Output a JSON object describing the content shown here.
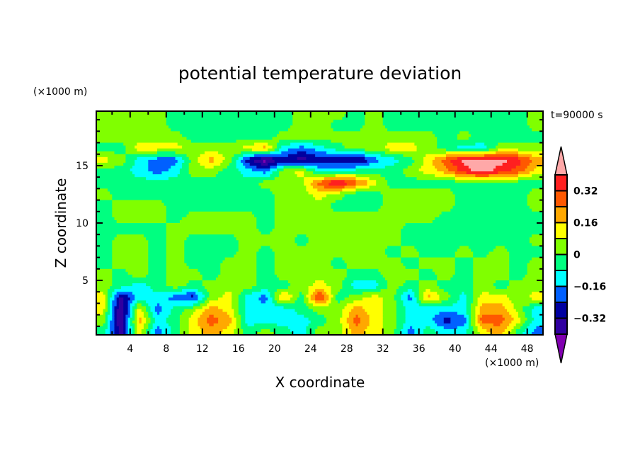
{
  "chart_data": {
    "type": "heatmap",
    "title": "potential temperature deviation",
    "xlabel": "X coordinate",
    "ylabel": "Z coordinate",
    "x_unit": "(×1000 m)",
    "y_unit": "(×1000 m)",
    "annotation": "t=90000 s",
    "xlim": [
      0.25,
      49.75
    ],
    "ylim": [
      0.25,
      19.75
    ],
    "x_ticks": [
      4,
      8,
      12,
      16,
      20,
      24,
      28,
      32,
      36,
      40,
      44,
      48
    ],
    "x_tick_labels": [
      "4",
      "8",
      "12",
      "16",
      "20",
      "24",
      "28",
      "32",
      "36",
      "40",
      "44",
      "48"
    ],
    "y_ticks": [
      5,
      10,
      15
    ],
    "y_tick_labels": [
      "5",
      "10",
      "15"
    ],
    "levels": [
      -0.4,
      -0.32,
      -0.24,
      -0.16,
      -0.08,
      0,
      0.08,
      0.16,
      0.24,
      0.32,
      0.4
    ],
    "colors": [
      "#8000b0",
      "#3000a0",
      "#0000a0",
      "#0060ff",
      "#00ffff",
      "#00ff80",
      "#80ff00",
      "#ffff00",
      "#ffa800",
      "#ff5800",
      "#ff2020",
      "#ffa8a8"
    ],
    "colorbar": {
      "labels": [
        {
          "value": 0.32,
          "text": "0.32"
        },
        {
          "value": 0.16,
          "text": "0.16"
        },
        {
          "value": 0,
          "text": "0"
        },
        {
          "value": -0.16,
          "text": "−0.16"
        },
        {
          "value": -0.32,
          "text": "−0.32"
        }
      ],
      "extend": "both"
    },
    "x": [
      1,
      3,
      5,
      7,
      9,
      11,
      13,
      15,
      17,
      19,
      21,
      23,
      25,
      27,
      29,
      31,
      33,
      35,
      37,
      39,
      41,
      43,
      45,
      47,
      49
    ],
    "z": [
      19.5,
      18.5,
      17.5,
      16.5,
      15.5,
      14.5,
      13.5,
      12.5,
      11.5,
      10.5,
      9.5,
      8.5,
      7.5,
      6.5,
      5.5,
      4.5,
      3.5,
      2.5,
      1.5,
      0.5
    ],
    "values": [
      [
        0.04,
        0.04,
        0.04,
        0.04,
        -0.04,
        -0.04,
        -0.04,
        -0.04,
        -0.04,
        -0.04,
        -0.04,
        0.04,
        0.04,
        0.04,
        -0.04,
        0.04,
        -0.04,
        -0.04,
        -0.04,
        -0.04,
        -0.04,
        -0.04,
        -0.04,
        -0.04,
        0.04
      ],
      [
        0.04,
        0.04,
        0.04,
        0.04,
        -0.04,
        -0.04,
        -0.04,
        -0.04,
        -0.04,
        -0.04,
        -0.04,
        0.04,
        0.04,
        -0.04,
        -0.04,
        0.04,
        -0.04,
        -0.04,
        -0.04,
        -0.04,
        -0.04,
        -0.04,
        -0.04,
        -0.04,
        0.04
      ],
      [
        0.04,
        0.04,
        0.04,
        0.04,
        0.04,
        -0.04,
        -0.04,
        -0.04,
        -0.04,
        -0.04,
        0.04,
        0.04,
        0.04,
        0.04,
        0.04,
        0.04,
        0.04,
        0.04,
        0.04,
        -0.04,
        0.04,
        -0.04,
        -0.04,
        -0.04,
        -0.04
      ],
      [
        -0.04,
        -0.04,
        0.12,
        0.12,
        0.12,
        0.04,
        0.04,
        0.04,
        0.12,
        0.2,
        -0.12,
        -0.2,
        -0.12,
        -0.04,
        0.04,
        0.04,
        0.12,
        0.12,
        0.04,
        -0.04,
        -0.12,
        -0.12,
        0.04,
        0.04,
        0.04
      ],
      [
        0.12,
        0.04,
        -0.12,
        -0.2,
        -0.2,
        0.04,
        0.2,
        0.04,
        -0.28,
        -0.44,
        -0.28,
        -0.36,
        -0.28,
        -0.28,
        -0.36,
        -0.2,
        -0.12,
        -0.04,
        0.12,
        0.28,
        0.44,
        0.44,
        0.44,
        0.36,
        0.2
      ],
      [
        -0.04,
        -0.04,
        -0.12,
        -0.2,
        -0.12,
        0.04,
        0.04,
        -0.04,
        -0.12,
        -0.2,
        0.04,
        0.12,
        -0.12,
        -0.12,
        -0.04,
        -0.04,
        -0.04,
        0.04,
        0.12,
        0.2,
        0.36,
        0.44,
        0.36,
        0.28,
        0.12
      ],
      [
        -0.04,
        -0.04,
        -0.04,
        -0.04,
        -0.04,
        -0.04,
        -0.04,
        -0.04,
        -0.04,
        0.04,
        0.04,
        0.04,
        0.28,
        0.44,
        0.28,
        0.12,
        -0.04,
        -0.04,
        -0.04,
        -0.04,
        -0.04,
        -0.04,
        -0.04,
        -0.04,
        -0.04
      ],
      [
        0.04,
        -0.04,
        -0.04,
        -0.04,
        -0.04,
        -0.04,
        -0.04,
        -0.04,
        -0.04,
        -0.04,
        0.04,
        0.04,
        0.12,
        0.04,
        -0.04,
        -0.04,
        0.04,
        0.04,
        0.04,
        0.04,
        -0.04,
        -0.04,
        -0.04,
        -0.04,
        0.04
      ],
      [
        -0.04,
        0.04,
        0.04,
        0.04,
        -0.04,
        -0.04,
        -0.04,
        -0.04,
        -0.04,
        -0.04,
        0.04,
        0.04,
        0.04,
        -0.04,
        -0.04,
        -0.04,
        0.04,
        0.04,
        0.04,
        0.04,
        -0.04,
        -0.04,
        -0.04,
        -0.04,
        0.04
      ],
      [
        -0.04,
        0.04,
        0.04,
        0.04,
        -0.04,
        0.04,
        0.04,
        0.04,
        0.04,
        -0.04,
        0.04,
        0.04,
        0.04,
        0.04,
        0.04,
        0.04,
        0.04,
        0.04,
        0.04,
        -0.04,
        -0.04,
        -0.04,
        -0.04,
        -0.04,
        -0.04
      ],
      [
        -0.04,
        -0.04,
        -0.04,
        -0.04,
        0.04,
        0.04,
        0.04,
        0.04,
        0.04,
        -0.04,
        0.04,
        0.04,
        0.04,
        0.04,
        0.04,
        0.04,
        0.04,
        -0.04,
        -0.04,
        -0.04,
        -0.04,
        -0.04,
        -0.04,
        -0.04,
        -0.04
      ],
      [
        -0.04,
        0.04,
        0.04,
        -0.04,
        0.04,
        -0.04,
        -0.04,
        -0.04,
        0.04,
        0.04,
        0.04,
        -0.04,
        0.04,
        0.04,
        0.04,
        0.04,
        0.04,
        -0.04,
        -0.04,
        -0.04,
        -0.04,
        -0.04,
        -0.04,
        -0.04,
        0.04
      ],
      [
        -0.04,
        0.04,
        0.04,
        -0.04,
        0.04,
        -0.04,
        -0.04,
        -0.04,
        0.04,
        -0.04,
        0.04,
        0.04,
        0.04,
        0.04,
        0.04,
        0.04,
        -0.04,
        0.04,
        -0.04,
        -0.04,
        0.04,
        -0.04,
        0.04,
        -0.04,
        -0.04
      ],
      [
        -0.04,
        0.04,
        0.04,
        -0.04,
        0.04,
        -0.04,
        -0.04,
        0.04,
        0.04,
        -0.04,
        0.04,
        0.04,
        0.04,
        -0.04,
        0.04,
        0.04,
        0.04,
        -0.04,
        0.04,
        0.04,
        -0.04,
        0.04,
        0.04,
        -0.04,
        0.04
      ],
      [
        0.04,
        -0.04,
        0.04,
        -0.04,
        0.04,
        0.04,
        -0.04,
        0.04,
        0.04,
        -0.04,
        0.04,
        0.04,
        0.04,
        0.04,
        -0.04,
        -0.04,
        0.04,
        0.04,
        -0.04,
        0.04,
        -0.04,
        0.04,
        0.04,
        -0.04,
        0.04
      ],
      [
        0.04,
        -0.04,
        -0.12,
        -0.04,
        0.04,
        -0.04,
        0.04,
        0.04,
        0.04,
        -0.04,
        -0.04,
        0.04,
        0.12,
        0.04,
        -0.12,
        -0.12,
        0.04,
        -0.04,
        0.04,
        -0.04,
        -0.04,
        0.04,
        -0.04,
        0.04,
        0.04
      ],
      [
        0.12,
        -0.36,
        -0.12,
        -0.12,
        -0.2,
        -0.28,
        0.04,
        0.12,
        -0.12,
        -0.2,
        0.2,
        -0.04,
        0.36,
        -0.04,
        0.04,
        0.12,
        0.04,
        -0.2,
        0.2,
        0.04,
        -0.12,
        0.12,
        0.12,
        0.04,
        0.12
      ],
      [
        0.12,
        -0.42,
        0.12,
        -0.2,
        -0.04,
        0.04,
        0.2,
        0.12,
        -0.12,
        -0.12,
        -0.12,
        -0.04,
        0.04,
        0.04,
        0.2,
        0.12,
        0.04,
        -0.12,
        -0.12,
        -0.12,
        -0.12,
        0.2,
        0.2,
        0.04,
        -0.12
      ],
      [
        0.04,
        -0.42,
        0.2,
        -0.12,
        -0.04,
        0.12,
        0.28,
        0.2,
        -0.12,
        -0.12,
        -0.12,
        -0.12,
        -0.04,
        0.04,
        0.28,
        0.12,
        0.04,
        -0.12,
        -0.12,
        -0.28,
        -0.2,
        0.28,
        0.28,
        0.12,
        -0.12
      ],
      [
        -0.04,
        -0.36,
        0.12,
        -0.2,
        -0.04,
        0.12,
        0.2,
        0.12,
        -0.04,
        0.04,
        -0.04,
        -0.12,
        0.04,
        0.04,
        0.2,
        0.12,
        0.04,
        -0.2,
        -0.04,
        -0.12,
        -0.12,
        0.12,
        0.2,
        -0.04,
        -0.2
      ]
    ]
  }
}
